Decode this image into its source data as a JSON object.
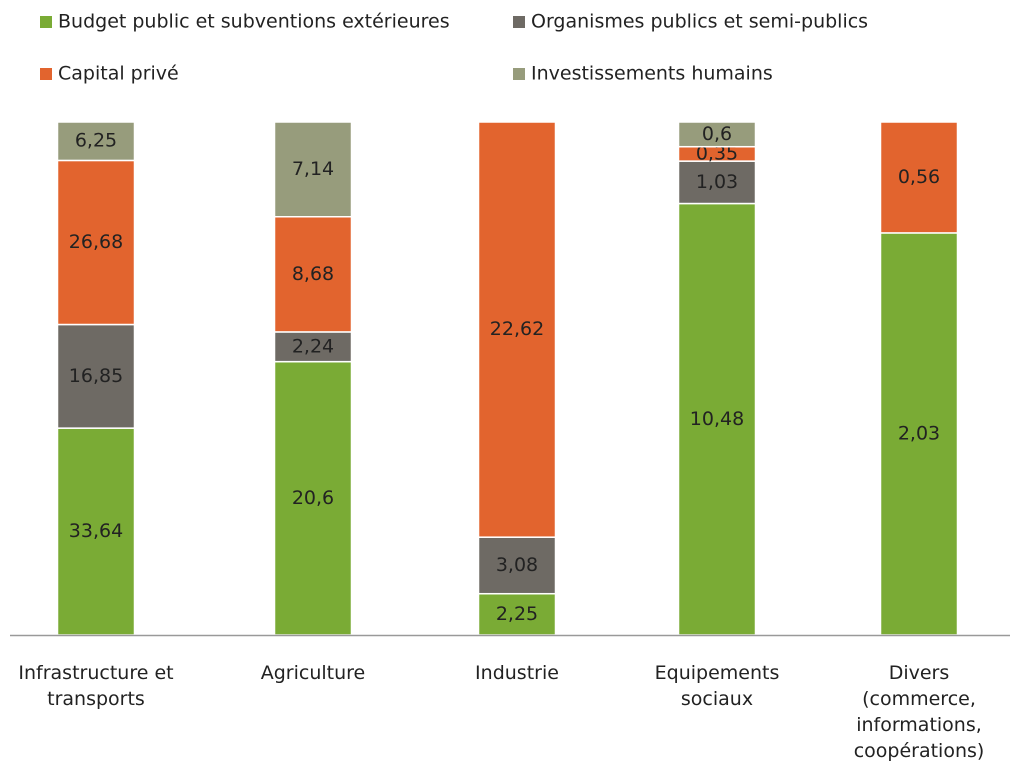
{
  "chart_data": {
    "type": "bar",
    "stacking": "percent",
    "categories": [
      "Infrastructure et transports",
      "Agriculture",
      "Industrie",
      "Equipements sociaux",
      "Divers (commerce, informations, coopérations)"
    ],
    "series": [
      {
        "name": "Budget public et subventions extérieures",
        "color": "#7aab35",
        "values": [
          33.64,
          20.6,
          2.25,
          10.48,
          2.03
        ],
        "value_labels": [
          "33,64",
          "20,6",
          "2,25",
          "10,48",
          "2,03"
        ]
      },
      {
        "name": "Organismes publics et semi-publics",
        "color": "#6e6a64",
        "values": [
          16.85,
          2.24,
          3.08,
          1.03,
          null
        ],
        "value_labels": [
          "16,85",
          "2,24",
          "3,08",
          "1,03",
          null
        ]
      },
      {
        "name": "Capital privé",
        "color": "#e2642e",
        "values": [
          26.68,
          8.68,
          22.62,
          0.35,
          0.56
        ],
        "value_labels": [
          "26,68",
          "8,68",
          "22,62",
          "0,35",
          "0,56"
        ]
      },
      {
        "name": "Investissements humains",
        "color": "#979c7c",
        "values": [
          6.25,
          7.14,
          null,
          0.6,
          null
        ],
        "value_labels": [
          "6,25",
          "7,14",
          null,
          "0,6",
          null
        ]
      }
    ],
    "legend": "top"
  }
}
